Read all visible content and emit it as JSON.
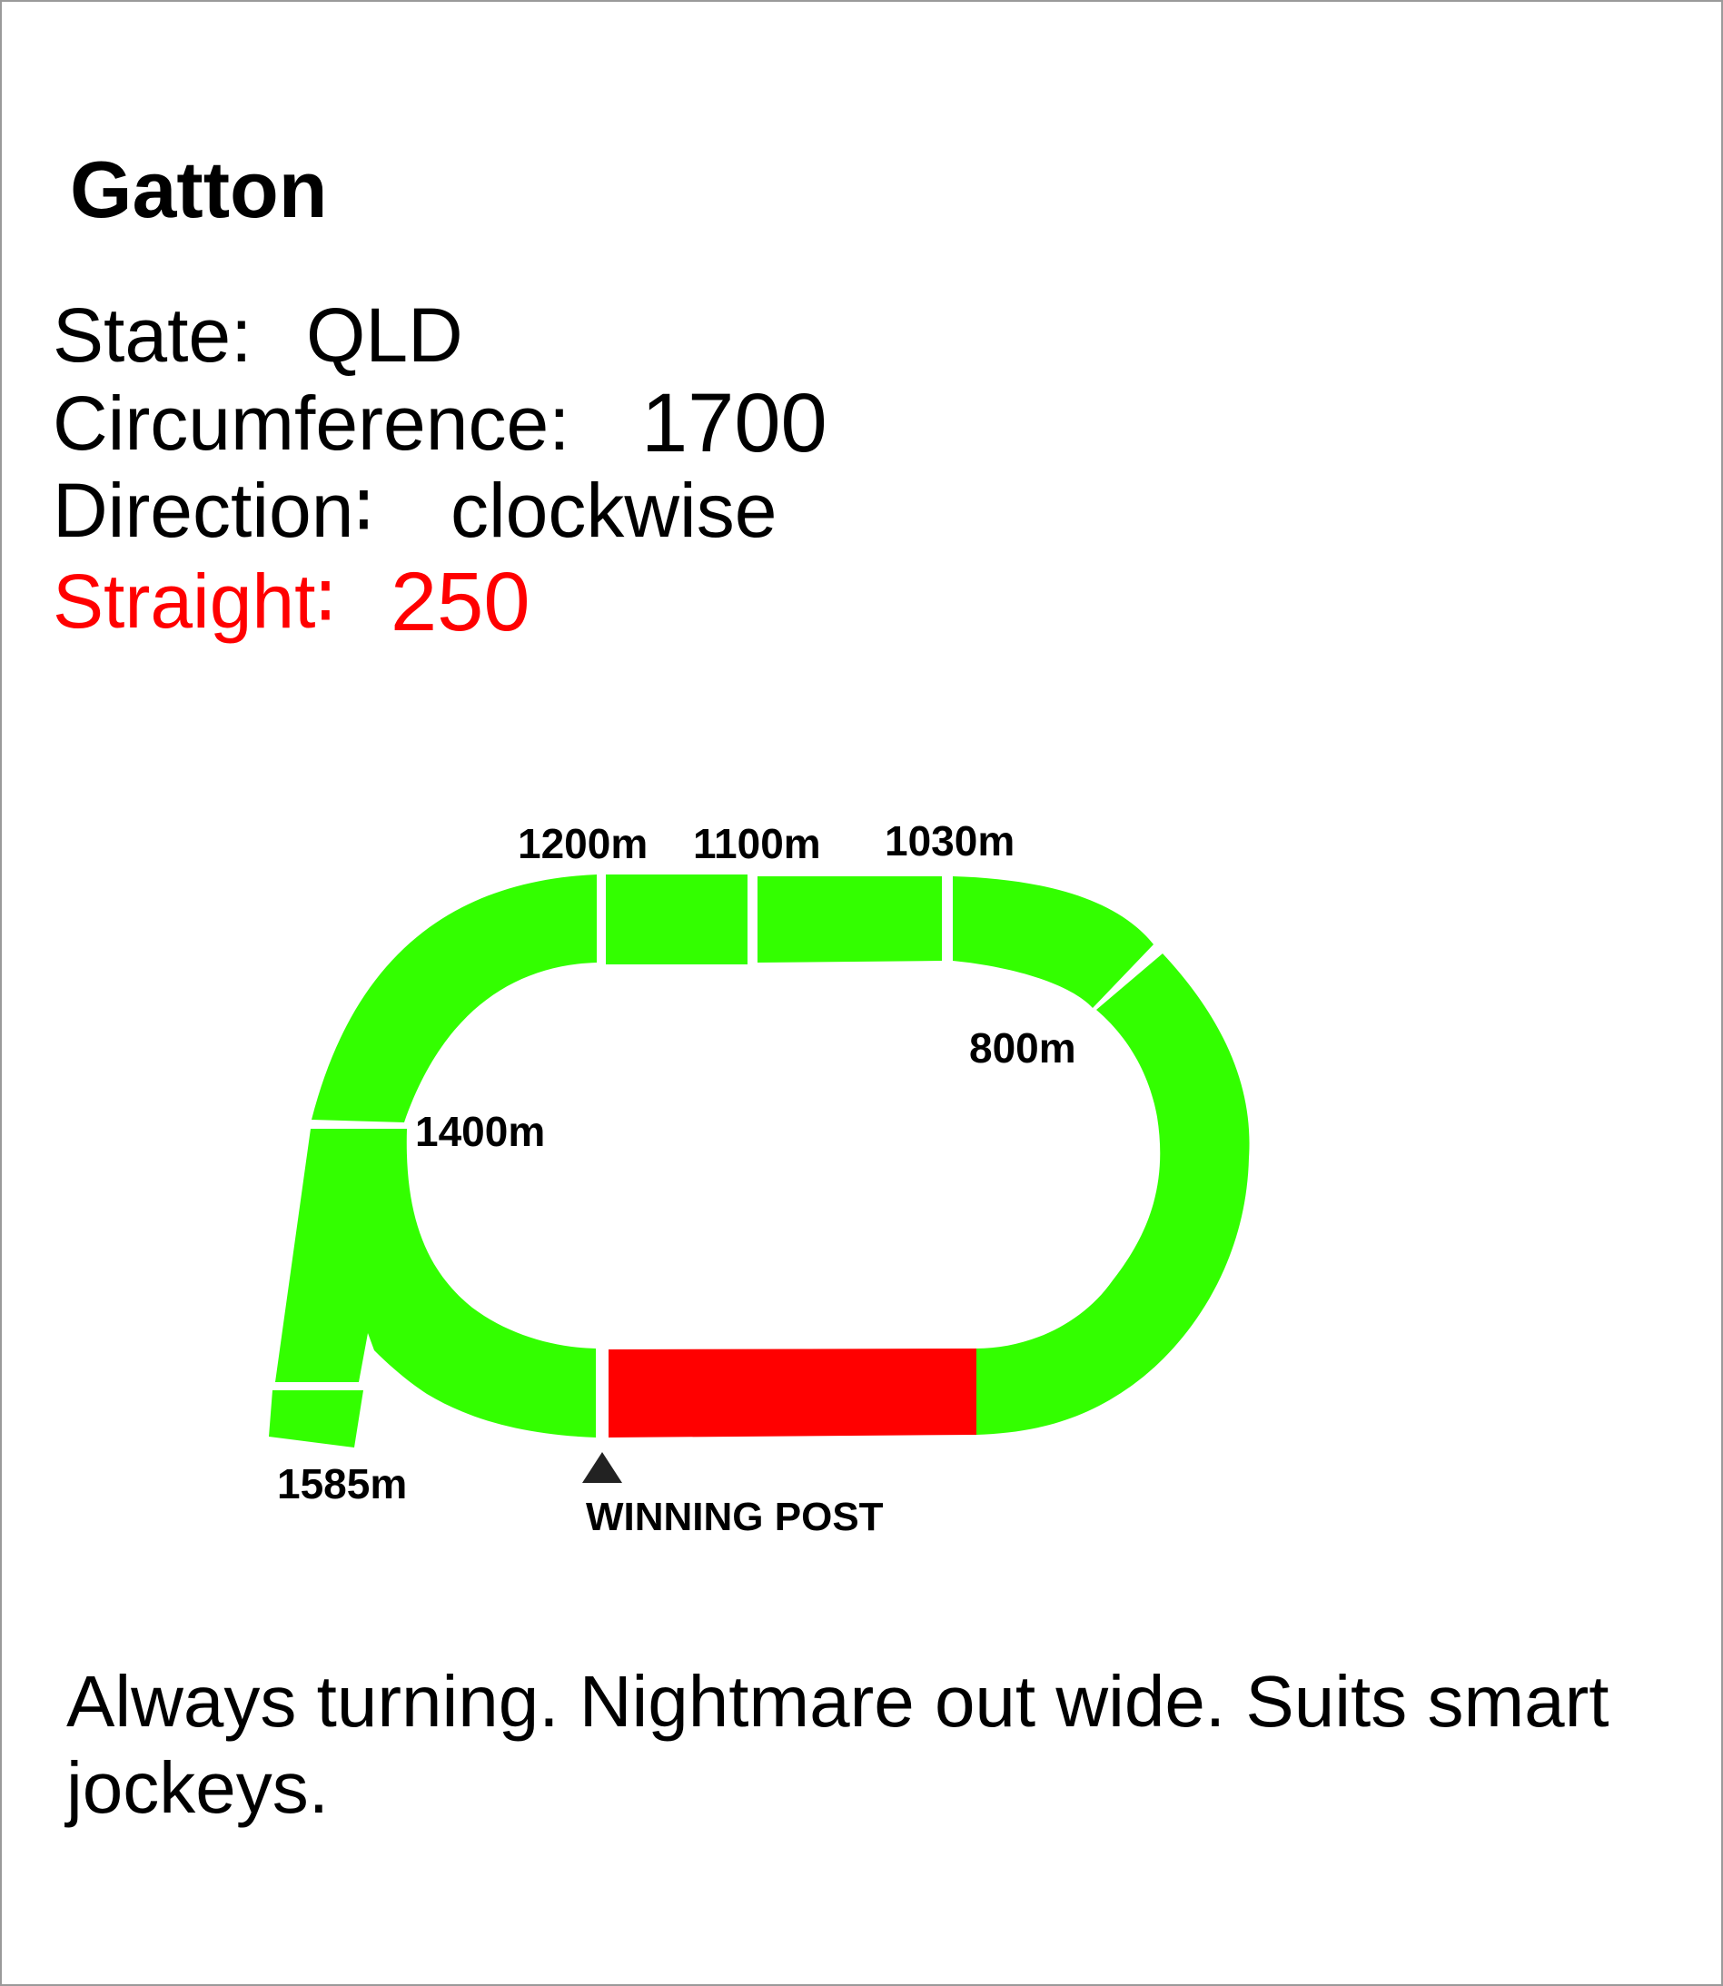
{
  "title": "Gatton",
  "info": {
    "state_label": "State:",
    "state_value": "QLD",
    "circumference_label": "Circumference:",
    "circumference_value": "1700",
    "direction_label": "Direction∶",
    "direction_value": "clockwise",
    "straight_label": "Straight∶",
    "straight_value": "250"
  },
  "markers": {
    "m1200": "1200m",
    "m1100": "1100m",
    "m1030": "1030m",
    "m800": "800m",
    "m1400": "1400m",
    "m1585": "1585m",
    "winning_post": "WINNING POST"
  },
  "colors": {
    "track": "#33ff00",
    "straight": "#ff0000",
    "text": "#000000",
    "highlight_text": "#ff0000",
    "post_marker": "#222222"
  },
  "note": "Always turning. Nightmare out wide. Suits smart jockeys."
}
